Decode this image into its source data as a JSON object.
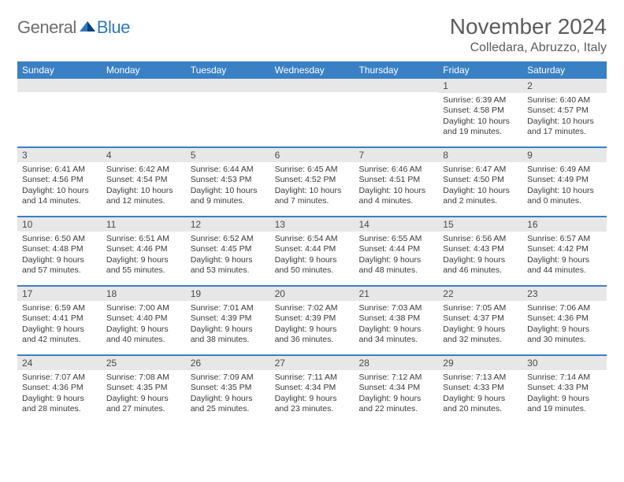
{
  "colors": {
    "header_blue": "#3a80c4",
    "band_grey": "#e7e7e7",
    "text_dark": "#3a3a3a",
    "title_grey": "#5c5c5c",
    "logo_grey": "#6d6d6d",
    "logo_blue": "#2f78bf"
  },
  "logo": {
    "general": "General",
    "blue": "Blue"
  },
  "title": {
    "month": "November 2024",
    "location": "Colledara, Abruzzo, Italy"
  },
  "dow": [
    "Sunday",
    "Monday",
    "Tuesday",
    "Wednesday",
    "Thursday",
    "Friday",
    "Saturday"
  ],
  "weeks": [
    [
      {
        "n": "",
        "sr": "",
        "ss": "",
        "dl": ""
      },
      {
        "n": "",
        "sr": "",
        "ss": "",
        "dl": ""
      },
      {
        "n": "",
        "sr": "",
        "ss": "",
        "dl": ""
      },
      {
        "n": "",
        "sr": "",
        "ss": "",
        "dl": ""
      },
      {
        "n": "",
        "sr": "",
        "ss": "",
        "dl": ""
      },
      {
        "n": "1",
        "sr": "Sunrise: 6:39 AM",
        "ss": "Sunset: 4:58 PM",
        "dl": "Daylight: 10 hours and 19 minutes."
      },
      {
        "n": "2",
        "sr": "Sunrise: 6:40 AM",
        "ss": "Sunset: 4:57 PM",
        "dl": "Daylight: 10 hours and 17 minutes."
      }
    ],
    [
      {
        "n": "3",
        "sr": "Sunrise: 6:41 AM",
        "ss": "Sunset: 4:56 PM",
        "dl": "Daylight: 10 hours and 14 minutes."
      },
      {
        "n": "4",
        "sr": "Sunrise: 6:42 AM",
        "ss": "Sunset: 4:54 PM",
        "dl": "Daylight: 10 hours and 12 minutes."
      },
      {
        "n": "5",
        "sr": "Sunrise: 6:44 AM",
        "ss": "Sunset: 4:53 PM",
        "dl": "Daylight: 10 hours and 9 minutes."
      },
      {
        "n": "6",
        "sr": "Sunrise: 6:45 AM",
        "ss": "Sunset: 4:52 PM",
        "dl": "Daylight: 10 hours and 7 minutes."
      },
      {
        "n": "7",
        "sr": "Sunrise: 6:46 AM",
        "ss": "Sunset: 4:51 PM",
        "dl": "Daylight: 10 hours and 4 minutes."
      },
      {
        "n": "8",
        "sr": "Sunrise: 6:47 AM",
        "ss": "Sunset: 4:50 PM",
        "dl": "Daylight: 10 hours and 2 minutes."
      },
      {
        "n": "9",
        "sr": "Sunrise: 6:49 AM",
        "ss": "Sunset: 4:49 PM",
        "dl": "Daylight: 10 hours and 0 minutes."
      }
    ],
    [
      {
        "n": "10",
        "sr": "Sunrise: 6:50 AM",
        "ss": "Sunset: 4:48 PM",
        "dl": "Daylight: 9 hours and 57 minutes."
      },
      {
        "n": "11",
        "sr": "Sunrise: 6:51 AM",
        "ss": "Sunset: 4:46 PM",
        "dl": "Daylight: 9 hours and 55 minutes."
      },
      {
        "n": "12",
        "sr": "Sunrise: 6:52 AM",
        "ss": "Sunset: 4:45 PM",
        "dl": "Daylight: 9 hours and 53 minutes."
      },
      {
        "n": "13",
        "sr": "Sunrise: 6:54 AM",
        "ss": "Sunset: 4:44 PM",
        "dl": "Daylight: 9 hours and 50 minutes."
      },
      {
        "n": "14",
        "sr": "Sunrise: 6:55 AM",
        "ss": "Sunset: 4:44 PM",
        "dl": "Daylight: 9 hours and 48 minutes."
      },
      {
        "n": "15",
        "sr": "Sunrise: 6:56 AM",
        "ss": "Sunset: 4:43 PM",
        "dl": "Daylight: 9 hours and 46 minutes."
      },
      {
        "n": "16",
        "sr": "Sunrise: 6:57 AM",
        "ss": "Sunset: 4:42 PM",
        "dl": "Daylight: 9 hours and 44 minutes."
      }
    ],
    [
      {
        "n": "17",
        "sr": "Sunrise: 6:59 AM",
        "ss": "Sunset: 4:41 PM",
        "dl": "Daylight: 9 hours and 42 minutes."
      },
      {
        "n": "18",
        "sr": "Sunrise: 7:00 AM",
        "ss": "Sunset: 4:40 PM",
        "dl": "Daylight: 9 hours and 40 minutes."
      },
      {
        "n": "19",
        "sr": "Sunrise: 7:01 AM",
        "ss": "Sunset: 4:39 PM",
        "dl": "Daylight: 9 hours and 38 minutes."
      },
      {
        "n": "20",
        "sr": "Sunrise: 7:02 AM",
        "ss": "Sunset: 4:39 PM",
        "dl": "Daylight: 9 hours and 36 minutes."
      },
      {
        "n": "21",
        "sr": "Sunrise: 7:03 AM",
        "ss": "Sunset: 4:38 PM",
        "dl": "Daylight: 9 hours and 34 minutes."
      },
      {
        "n": "22",
        "sr": "Sunrise: 7:05 AM",
        "ss": "Sunset: 4:37 PM",
        "dl": "Daylight: 9 hours and 32 minutes."
      },
      {
        "n": "23",
        "sr": "Sunrise: 7:06 AM",
        "ss": "Sunset: 4:36 PM",
        "dl": "Daylight: 9 hours and 30 minutes."
      }
    ],
    [
      {
        "n": "24",
        "sr": "Sunrise: 7:07 AM",
        "ss": "Sunset: 4:36 PM",
        "dl": "Daylight: 9 hours and 28 minutes."
      },
      {
        "n": "25",
        "sr": "Sunrise: 7:08 AM",
        "ss": "Sunset: 4:35 PM",
        "dl": "Daylight: 9 hours and 27 minutes."
      },
      {
        "n": "26",
        "sr": "Sunrise: 7:09 AM",
        "ss": "Sunset: 4:35 PM",
        "dl": "Daylight: 9 hours and 25 minutes."
      },
      {
        "n": "27",
        "sr": "Sunrise: 7:11 AM",
        "ss": "Sunset: 4:34 PM",
        "dl": "Daylight: 9 hours and 23 minutes."
      },
      {
        "n": "28",
        "sr": "Sunrise: 7:12 AM",
        "ss": "Sunset: 4:34 PM",
        "dl": "Daylight: 9 hours and 22 minutes."
      },
      {
        "n": "29",
        "sr": "Sunrise: 7:13 AM",
        "ss": "Sunset: 4:33 PM",
        "dl": "Daylight: 9 hours and 20 minutes."
      },
      {
        "n": "30",
        "sr": "Sunrise: 7:14 AM",
        "ss": "Sunset: 4:33 PM",
        "dl": "Daylight: 9 hours and 19 minutes."
      }
    ]
  ]
}
